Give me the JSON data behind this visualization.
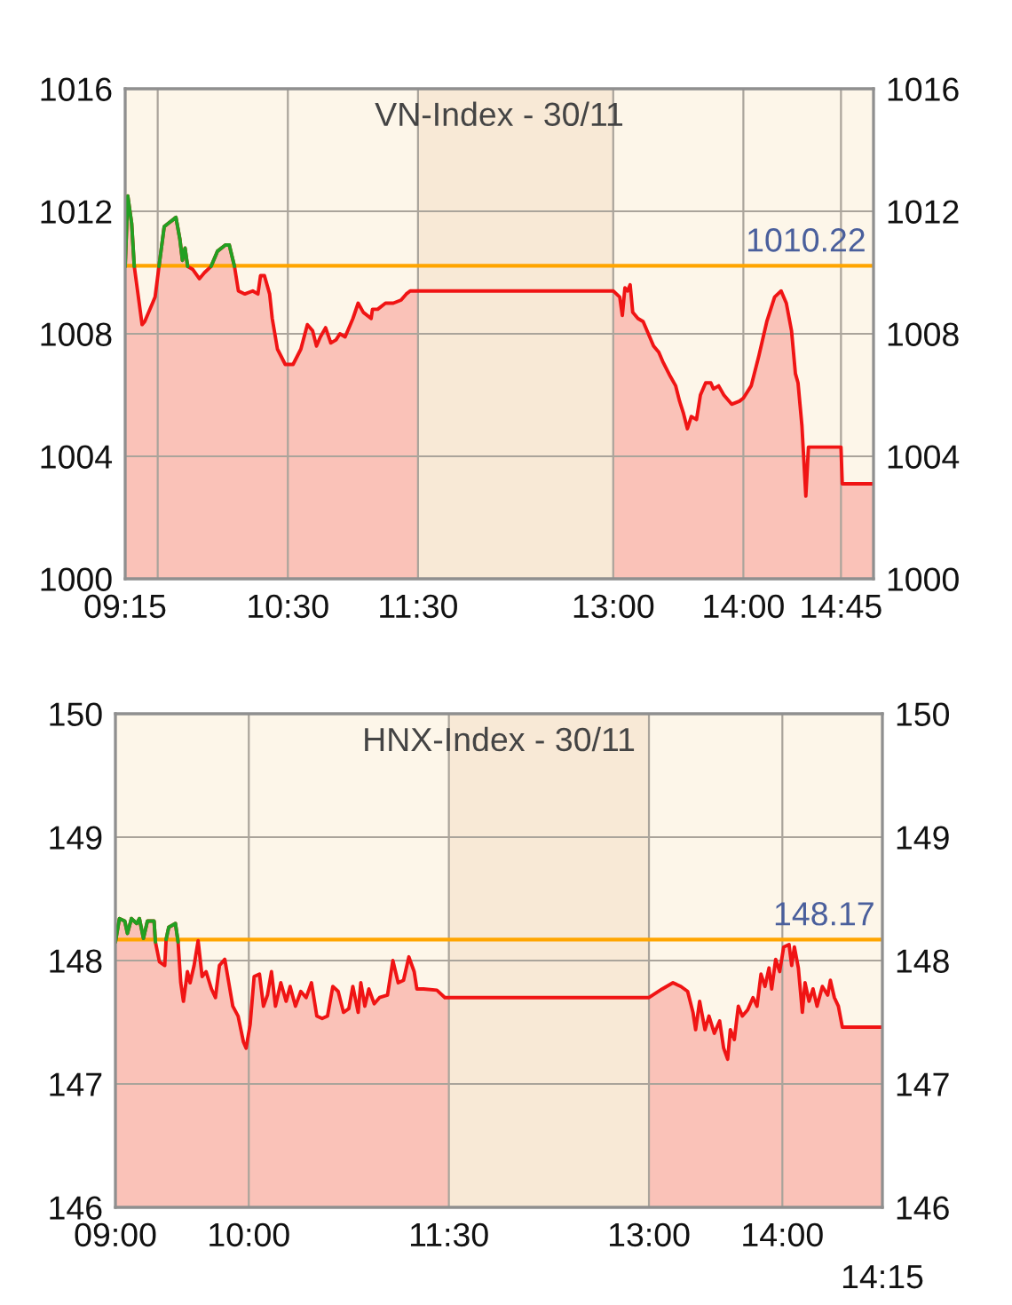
{
  "chart_data": [
    {
      "type": "area",
      "title": "VN-Index - 30/11",
      "x": [
        9.25,
        9.27,
        9.3,
        9.32,
        9.38,
        9.4,
        9.46,
        9.48,
        9.51,
        9.55,
        9.58,
        9.61,
        9.64,
        9.67,
        9.69,
        9.71,
        9.73,
        9.77,
        9.82,
        9.86,
        9.91,
        9.96,
        10.02,
        10.05,
        10.09,
        10.12,
        10.17,
        10.23,
        10.27,
        10.29,
        10.32,
        10.36,
        10.38,
        10.42,
        10.48,
        10.54,
        10.6,
        10.65,
        10.69,
        10.72,
        10.75,
        10.79,
        10.83,
        10.87,
        10.9,
        10.94,
        11.0,
        11.04,
        11.08,
        11.14,
        11.15,
        11.19,
        11.25,
        11.31,
        11.37,
        11.41,
        11.44,
        11.5,
        13.0,
        13.05,
        13.07,
        13.09,
        13.11,
        13.13,
        13.15,
        13.19,
        13.23,
        13.27,
        13.31,
        13.35,
        13.38,
        13.44,
        13.48,
        13.51,
        13.54,
        13.57,
        13.6,
        13.64,
        13.67,
        13.71,
        13.75,
        13.77,
        13.81,
        13.85,
        13.91,
        13.97,
        14.0,
        14.06,
        14.12,
        14.18,
        14.24,
        14.29,
        14.33,
        14.37,
        14.4,
        14.42,
        14.45,
        14.48,
        14.5,
        14.53,
        14.75,
        14.76,
        15.0
      ],
      "series": [
        {
          "color": "#f01414",
          "values": [
            1010.2,
            1012.5,
            1011.6,
            1010.2,
            1008.3,
            1008.4,
            1009.0,
            1009.2,
            1010.2,
            1011.5,
            1011.6,
            1011.7,
            1011.8,
            1011.1,
            1010.4,
            1010.8,
            1010.2,
            1010.1,
            1009.8,
            1010.0,
            1010.2,
            1010.7,
            1010.9,
            1010.9,
            1010.2,
            1009.4,
            1009.3,
            1009.4,
            1009.3,
            1009.9,
            1009.9,
            1009.3,
            1008.5,
            1007.5,
            1007.0,
            1007.0,
            1007.5,
            1008.3,
            1008.1,
            1007.6,
            1007.9,
            1008.2,
            1007.7,
            1007.8,
            1008.0,
            1007.9,
            1008.5,
            1009.0,
            1008.7,
            1008.5,
            1008.8,
            1008.8,
            1009.0,
            1009.0,
            1009.1,
            1009.3,
            1009.4,
            1009.4,
            1009.4,
            1009.2,
            1008.6,
            1009.5,
            1009.4,
            1009.6,
            1008.7,
            1008.5,
            1008.4,
            1008.0,
            1007.6,
            1007.4,
            1007.1,
            1006.6,
            1006.3,
            1005.8,
            1005.4,
            1004.9,
            1005.3,
            1005.2,
            1006.0,
            1006.4,
            1006.4,
            1006.2,
            1006.3,
            1006.0,
            1005.7,
            1005.8,
            1005.9,
            1006.3,
            1007.3,
            1008.4,
            1009.2,
            1009.4,
            1009.0,
            1008.1,
            1006.7,
            1006.4,
            1005.0,
            1002.7,
            1004.3,
            1004.3,
            1004.3,
            1003.1,
            1003.1
          ]
        },
        {
          "type": "line",
          "color": "#22a022",
          "x": [
            9.25,
            9.27,
            9.3,
            9.32
          ],
          "values": [
            1010.2,
            1012.5,
            1011.6,
            1010.2
          ]
        },
        {
          "type": "line",
          "color": "#22a022",
          "x": [
            9.51,
            9.55,
            9.58,
            9.61,
            9.64,
            9.67,
            9.69,
            9.71,
            9.73
          ],
          "values": [
            1010.2,
            1011.5,
            1011.6,
            1011.7,
            1011.8,
            1011.1,
            1010.4,
            1010.8,
            1010.2
          ]
        },
        {
          "type": "line",
          "color": "#22a022",
          "x": [
            9.91,
            9.96,
            10.02,
            10.05,
            10.09
          ],
          "values": [
            1010.2,
            1010.7,
            1010.9,
            1010.9,
            1010.2
          ]
        }
      ],
      "xlim": [
        9.25,
        15.0
      ],
      "xticks": [
        {
          "value": 9.25,
          "label": "09:15"
        },
        {
          "value": 9.5,
          "label": null
        },
        {
          "value": 10.5,
          "label": "10:30"
        },
        {
          "value": 11.5,
          "label": "11:30"
        },
        {
          "value": 13,
          "label": "13:00"
        },
        {
          "value": 14,
          "label": "14:00"
        },
        {
          "value": 14.75,
          "label": "14:45"
        }
      ],
      "ylim": [
        1000,
        1016
      ],
      "yticks": [
        1000,
        1004,
        1008,
        1012,
        1016
      ],
      "y2lim": [
        1000,
        1016
      ],
      "y2ticks": [
        1000,
        1004,
        1008,
        1012,
        1016
      ],
      "ref_lines": [
        {
          "axis": "y",
          "value": 1010.22,
          "label": "1010.22",
          "color": "#ffa500"
        }
      ],
      "bands": [
        {
          "axis": "x",
          "from": 11.5,
          "to": 13,
          "color": "#f8e9d6"
        }
      ],
      "grid": true
    },
    {
      "type": "area",
      "title": "HNX-Index - 30/11",
      "x": [
        9.0,
        9.03,
        9.07,
        9.09,
        9.12,
        9.16,
        9.18,
        9.21,
        9.24,
        9.29,
        9.3,
        9.33,
        9.37,
        9.38,
        9.4,
        9.45,
        9.47,
        9.49,
        9.51,
        9.54,
        9.56,
        9.59,
        9.62,
        9.65,
        9.68,
        9.72,
        9.75,
        9.78,
        9.82,
        9.85,
        9.88,
        9.92,
        9.96,
        9.98,
        10.01,
        10.04,
        10.08,
        10.11,
        10.14,
        10.17,
        10.2,
        10.24,
        10.28,
        10.31,
        10.35,
        10.39,
        10.43,
        10.47,
        10.51,
        10.55,
        10.59,
        10.63,
        10.67,
        10.71,
        10.75,
        10.78,
        10.82,
        10.84,
        10.87,
        10.9,
        10.94,
        10.98,
        11.04,
        11.08,
        11.12,
        11.16,
        11.2,
        11.24,
        11.26,
        11.31,
        11.41,
        11.47,
        11.5,
        13.0,
        13.1,
        13.18,
        13.24,
        13.29,
        13.33,
        13.35,
        13.38,
        13.42,
        13.45,
        13.49,
        13.53,
        13.56,
        13.59,
        13.61,
        13.64,
        13.67,
        13.7,
        13.74,
        13.78,
        13.81,
        13.84,
        13.87,
        13.9,
        13.92,
        13.95,
        13.98,
        14.01,
        14.05,
        14.07,
        14.09,
        14.12,
        14.15,
        14.17,
        14.2,
        14.23,
        14.26,
        14.3,
        14.34,
        14.36,
        14.39,
        14.42,
        14.45,
        14.75
      ],
      "series": [
        {
          "color": "#f01414",
          "values": [
            148.15,
            148.34,
            148.32,
            148.22,
            148.34,
            148.3,
            148.34,
            148.18,
            148.32,
            148.32,
            148.15,
            147.99,
            147.96,
            148.17,
            148.27,
            148.3,
            148.15,
            147.82,
            147.67,
            147.91,
            147.82,
            147.96,
            148.16,
            147.87,
            147.91,
            147.77,
            147.7,
            147.96,
            148.01,
            147.82,
            147.63,
            147.55,
            147.34,
            147.29,
            147.48,
            147.87,
            147.89,
            147.63,
            147.72,
            147.91,
            147.63,
            147.82,
            147.67,
            147.79,
            147.63,
            147.75,
            147.7,
            147.82,
            147.55,
            147.53,
            147.55,
            147.79,
            147.75,
            147.58,
            147.61,
            147.79,
            147.58,
            147.82,
            147.63,
            147.77,
            147.65,
            147.7,
            147.72,
            148.0,
            147.82,
            147.84,
            148.03,
            147.91,
            147.77,
            147.77,
            147.76,
            147.7,
            147.7,
            147.7,
            147.77,
            147.82,
            147.79,
            147.75,
            147.58,
            147.44,
            147.67,
            147.44,
            147.55,
            147.41,
            147.51,
            147.29,
            147.2,
            147.44,
            147.36,
            147.63,
            147.55,
            147.6,
            147.7,
            147.63,
            147.89,
            147.79,
            147.94,
            147.77,
            148.01,
            147.91,
            148.11,
            148.13,
            147.96,
            148.11,
            147.94,
            147.58,
            147.82,
            147.67,
            147.77,
            147.63,
            147.79,
            147.72,
            147.84,
            147.7,
            147.63,
            147.46,
            147.46
          ]
        },
        {
          "type": "line",
          "color": "#22a022",
          "x": [
            9.0,
            9.03,
            9.07,
            9.09,
            9.12,
            9.16,
            9.18,
            9.21,
            9.24,
            9.29,
            9.3
          ],
          "values": [
            148.15,
            148.34,
            148.32,
            148.22,
            148.34,
            148.3,
            148.34,
            148.18,
            148.32,
            148.32,
            148.15
          ]
        },
        {
          "type": "line",
          "color": "#22a022",
          "x": [
            9.38,
            9.4,
            9.45,
            9.47
          ],
          "values": [
            148.17,
            148.27,
            148.3,
            148.15
          ]
        }
      ],
      "xlim": [
        9.0,
        14.75
      ],
      "xticks": [
        {
          "value": 9.0,
          "label": "09:00"
        },
        {
          "value": 10,
          "label": "10:00"
        },
        {
          "value": 11.5,
          "label": "11:30"
        },
        {
          "value": 13,
          "label": "13:00"
        },
        {
          "value": 14,
          "label": "14:00"
        }
      ],
      "annotations": [
        "14:15"
      ],
      "ylim": [
        146,
        150
      ],
      "yticks": [
        146,
        147,
        148,
        149,
        150
      ],
      "y2lim": [
        146,
        150
      ],
      "y2ticks": [
        146,
        147,
        148,
        149,
        150
      ],
      "ref_lines": [
        {
          "axis": "y",
          "value": 148.17,
          "label": "148.17",
          "color": "#ffa500"
        }
      ],
      "bands": [
        {
          "axis": "x",
          "from": 11.5,
          "to": 13,
          "color": "#f8e9d6"
        }
      ],
      "grid": true
    }
  ]
}
